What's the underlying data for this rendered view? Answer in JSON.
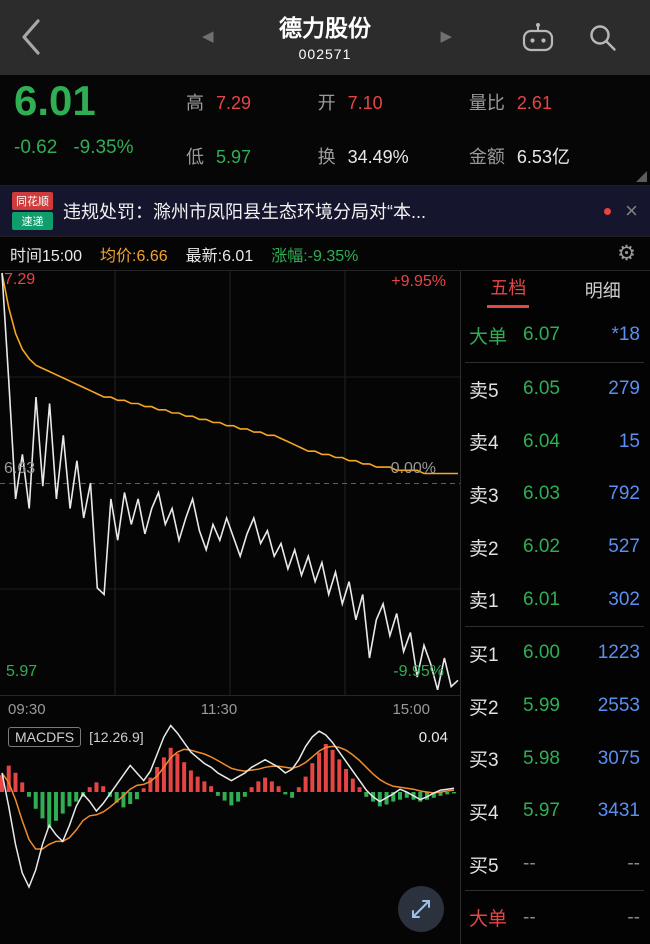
{
  "header": {
    "title": "德力股份",
    "code": "002571"
  },
  "icons": {
    "prev": "◀",
    "next": "▶",
    "close": "×",
    "gear": "⚙"
  },
  "quote": {
    "price": "6.01",
    "change": "-0.62",
    "change_pct": "-9.35%",
    "stats": [
      {
        "label": "高",
        "value": "7.29",
        "color": "red"
      },
      {
        "label": "开",
        "value": "7.10",
        "color": "red"
      },
      {
        "label": "量比",
        "value": "2.61",
        "color": "red"
      },
      {
        "label": "低",
        "value": "5.97",
        "color": "green"
      },
      {
        "label": "换",
        "value": "34.49%",
        "color": "white"
      },
      {
        "label": "金额",
        "value": "6.53亿",
        "color": "white"
      }
    ]
  },
  "news": {
    "logo_top": "同花顺",
    "logo_bottom": "速递",
    "text": "违规处罚：滁州市凤阳县生态环境分局对“本..."
  },
  "chart_header": {
    "items": [
      {
        "text": "时间15:00",
        "color": "white"
      },
      {
        "text": "均价:6.66",
        "color": "orange"
      },
      {
        "text": "最新:6.01",
        "color": "white"
      },
      {
        "text": "涨幅:-9.35%",
        "color": "green"
      }
    ]
  },
  "order_book": {
    "tabs": [
      {
        "label": "五档",
        "active": true
      },
      {
        "label": "明细",
        "active": false
      }
    ],
    "rows": [
      {
        "label": "大单",
        "price": "6.07",
        "vol": "*18",
        "label_color": "green",
        "divider_after": true
      },
      {
        "label": "卖5",
        "price": "6.05",
        "vol": "279"
      },
      {
        "label": "卖4",
        "price": "6.04",
        "vol": "15"
      },
      {
        "label": "卖3",
        "price": "6.03",
        "vol": "792"
      },
      {
        "label": "卖2",
        "price": "6.02",
        "vol": "527"
      },
      {
        "label": "卖1",
        "price": "6.01",
        "vol": "302",
        "divider_after": true
      },
      {
        "label": "买1",
        "price": "6.00",
        "vol": "1223"
      },
      {
        "label": "买2",
        "price": "5.99",
        "vol": "2553"
      },
      {
        "label": "买3",
        "price": "5.98",
        "vol": "3075"
      },
      {
        "label": "买4",
        "price": "5.97",
        "vol": "3431"
      },
      {
        "label": "买5",
        "price": "--",
        "vol": "--",
        "divider_after": true
      },
      {
        "label": "大单",
        "price": "--",
        "vol": "--",
        "label_color": "red"
      }
    ]
  },
  "chart_data": {
    "type": "line",
    "x_axis": [
      "09:30",
      "11:30",
      "15:00"
    ],
    "y_left": {
      "high": "7.29",
      "mid": "6.63",
      "low": "5.97"
    },
    "y_right": {
      "high": "+9.95%",
      "mid": "0.00%",
      "low": "-9.95%"
    },
    "price_range": [
      5.97,
      7.29
    ],
    "prev_close": 6.63,
    "series": [
      {
        "name": "price",
        "color": "#e9e9e9",
        "values": [
          7.29,
          6.95,
          6.58,
          6.72,
          6.55,
          6.9,
          6.62,
          6.88,
          6.58,
          6.78,
          6.55,
          6.7,
          6.52,
          6.63,
          6.3,
          6.28,
          6.58,
          6.45,
          6.6,
          6.5,
          6.58,
          6.47,
          6.55,
          6.6,
          6.5,
          6.55,
          6.45,
          6.52,
          6.58,
          6.48,
          6.42,
          6.5,
          6.45,
          6.52,
          6.46,
          6.4,
          6.47,
          6.52,
          6.44,
          6.48,
          6.4,
          6.44,
          6.36,
          6.42,
          6.34,
          6.4,
          6.32,
          6.38,
          6.28,
          6.35,
          6.25,
          6.32,
          6.2,
          6.28,
          6.08,
          6.2,
          6.25,
          6.15,
          6.22,
          6.1,
          6.16,
          6.02,
          6.12,
          6.06,
          5.98,
          6.08,
          5.99,
          6.01
        ]
      },
      {
        "name": "avg",
        "color": "#f5a623",
        "values": [
          7.29,
          7.18,
          7.1,
          7.05,
          7.02,
          7.0,
          6.99,
          6.98,
          6.97,
          6.96,
          6.95,
          6.94,
          6.93,
          6.92,
          6.91,
          6.9,
          6.9,
          6.89,
          6.89,
          6.88,
          6.88,
          6.87,
          6.87,
          6.86,
          6.86,
          6.85,
          6.85,
          6.84,
          6.84,
          6.83,
          6.83,
          6.82,
          6.82,
          6.81,
          6.81,
          6.8,
          6.8,
          6.79,
          6.79,
          6.78,
          6.78,
          6.77,
          6.76,
          6.75,
          6.74,
          6.73,
          6.73,
          6.72,
          6.72,
          6.71,
          6.71,
          6.7,
          6.7,
          6.69,
          6.69,
          6.68,
          6.68,
          6.68,
          6.67,
          6.67,
          6.67,
          6.67,
          6.66,
          6.66,
          6.66,
          6.66,
          6.66,
          6.66
        ]
      }
    ],
    "macd": {
      "label": "MACDFS",
      "params": "[12.26.9]",
      "value": "0.04",
      "bars": [
        0.35,
        0.55,
        0.4,
        0.2,
        -0.1,
        -0.35,
        -0.55,
        -0.75,
        -0.6,
        -0.45,
        -0.3,
        -0.2,
        -0.1,
        0.1,
        0.2,
        0.12,
        -0.1,
        -0.22,
        -0.32,
        -0.25,
        -0.15,
        0.08,
        0.3,
        0.52,
        0.72,
        0.92,
        0.8,
        0.62,
        0.45,
        0.32,
        0.22,
        0.12,
        -0.08,
        -0.18,
        -0.28,
        -0.2,
        -0.1,
        0.1,
        0.22,
        0.3,
        0.22,
        0.12,
        -0.05,
        -0.12,
        0.1,
        0.32,
        0.6,
        0.82,
        1.0,
        0.88,
        0.68,
        0.48,
        0.28,
        0.1,
        -0.1,
        -0.2,
        -0.3,
        -0.26,
        -0.2,
        -0.16,
        -0.12,
        -0.16,
        -0.2,
        -0.16,
        -0.12,
        -0.08,
        -0.05,
        -0.03
      ],
      "dif": [
        0.2,
        -0.15,
        -0.55,
        -0.85,
        -1.0,
        -0.82,
        -0.55,
        -0.35,
        -0.45,
        -0.52,
        -0.35,
        -0.15,
        -0.02,
        -0.1,
        -0.2,
        -0.12,
        -0.02,
        0.08,
        0.18,
        0.28,
        0.2,
        0.12,
        0.22,
        0.4,
        0.58,
        0.7,
        0.62,
        0.52,
        0.42,
        0.36,
        0.3,
        0.26,
        0.2,
        0.16,
        0.12,
        0.16,
        0.2,
        0.26,
        0.3,
        0.34,
        0.3,
        0.26,
        0.2,
        0.24,
        0.34,
        0.48,
        0.58,
        0.64,
        0.6,
        0.52,
        0.42,
        0.32,
        0.22,
        0.12,
        0.02,
        -0.05,
        -0.1,
        -0.06,
        -0.02,
        0.03,
        0.0,
        -0.04,
        -0.08,
        -0.05,
        -0.01,
        0.02,
        0.03,
        0.04
      ],
      "dea": [
        0.2,
        0.1,
        -0.08,
        -0.3,
        -0.5,
        -0.6,
        -0.6,
        -0.55,
        -0.52,
        -0.52,
        -0.48,
        -0.4,
        -0.3,
        -0.25,
        -0.24,
        -0.21,
        -0.16,
        -0.1,
        -0.04,
        0.03,
        0.07,
        0.08,
        0.11,
        0.17,
        0.26,
        0.36,
        0.42,
        0.45,
        0.44,
        0.42,
        0.4,
        0.37,
        0.33,
        0.29,
        0.25,
        0.23,
        0.22,
        0.23,
        0.24,
        0.26,
        0.27,
        0.27,
        0.26,
        0.25,
        0.27,
        0.31,
        0.37,
        0.43,
        0.47,
        0.48,
        0.47,
        0.44,
        0.39,
        0.33,
        0.26,
        0.19,
        0.13,
        0.09,
        0.06,
        0.05,
        0.04,
        0.03,
        0.01,
        0.0,
        -0.01,
        0.0,
        0.01,
        0.02
      ]
    }
  },
  "colors": {
    "red": "#e64545",
    "green": "#2fae54",
    "blue": "#5b8ff2",
    "orange": "#f0a432",
    "gray": "#9a9a9a",
    "white": "#e8e8e8",
    "macd_dif": "#eaeaea",
    "macd_dea": "#f08c2e"
  }
}
